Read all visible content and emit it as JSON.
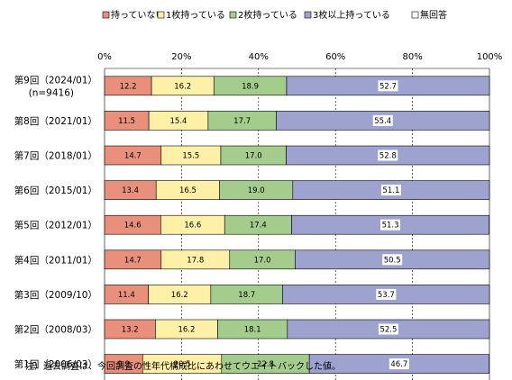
{
  "chart_data": {
    "type": "bar",
    "orientation": "horizontal",
    "stacked": "percent",
    "title": "",
    "xlabel": "",
    "ylabel": "",
    "xlim": [
      0,
      100
    ],
    "tick_labels": [
      "0%",
      "20%",
      "40%",
      "60%",
      "80%",
      "100%"
    ],
    "legend_position": "top",
    "categories": [
      "第9回（2024/01）",
      "第8回（2021/01）",
      "第7回（2018/01）",
      "第6回（2015/01）",
      "第5回（2012/01）",
      "第4回（2011/01）",
      "第3回（2009/10）",
      "第2回（2008/03）",
      "第1回（2006/03）"
    ],
    "sub_labels": [
      "(n=9416)",
      "",
      "",
      "",
      "",
      "",
      "",
      "",
      ""
    ],
    "series": [
      {
        "name": "持っていない",
        "color": "#E8907C",
        "values": [
          12.2,
          11.5,
          14.7,
          13.4,
          14.6,
          14.7,
          11.4,
          13.2,
          9.9
        ]
      },
      {
        "name": "1枚持っている",
        "color": "#FFF0A8",
        "values": [
          16.2,
          15.4,
          15.5,
          16.5,
          16.6,
          17.8,
          16.2,
          16.2,
          20.5
        ]
      },
      {
        "name": "2枚持っている",
        "color": "#A4CC8C",
        "values": [
          18.9,
          17.7,
          17.0,
          19.0,
          17.4,
          17.0,
          18.7,
          18.1,
          22.8
        ]
      },
      {
        "name": "3枚以上持っている",
        "color": "#9EA2CF",
        "values": [
          52.7,
          55.4,
          52.8,
          51.1,
          51.3,
          50.5,
          53.7,
          52.5,
          46.7
        ]
      },
      {
        "name": "無回答",
        "color": "#FFFFFF",
        "values": [
          0,
          0,
          0,
          0,
          0,
          0,
          0,
          0,
          0
        ]
      }
    ],
    "data_labels": [
      [
        "12.2",
        "16.2",
        "18.9",
        "52.7"
      ],
      [
        "11.5",
        "15.4",
        "17.7",
        "55.4"
      ],
      [
        "14.7",
        "15.5",
        "17.0",
        "52.8"
      ],
      [
        "13.4",
        "16.5",
        "19.0",
        "51.1"
      ],
      [
        "14.6",
        "16.6",
        "17.4",
        "51.3"
      ],
      [
        "14.7",
        "17.8",
        "17.0",
        "50.5"
      ],
      [
        "11.4",
        "16.2",
        "18.7",
        "53.7"
      ],
      [
        "13.2",
        "16.2",
        "18.1",
        "52.5"
      ],
      [
        "9.9",
        "20.5",
        "22.8",
        "46.7"
      ]
    ],
    "note": "注）過去調査は、今回調査の性年代構成比にあわせてウエイトバックした値。"
  }
}
